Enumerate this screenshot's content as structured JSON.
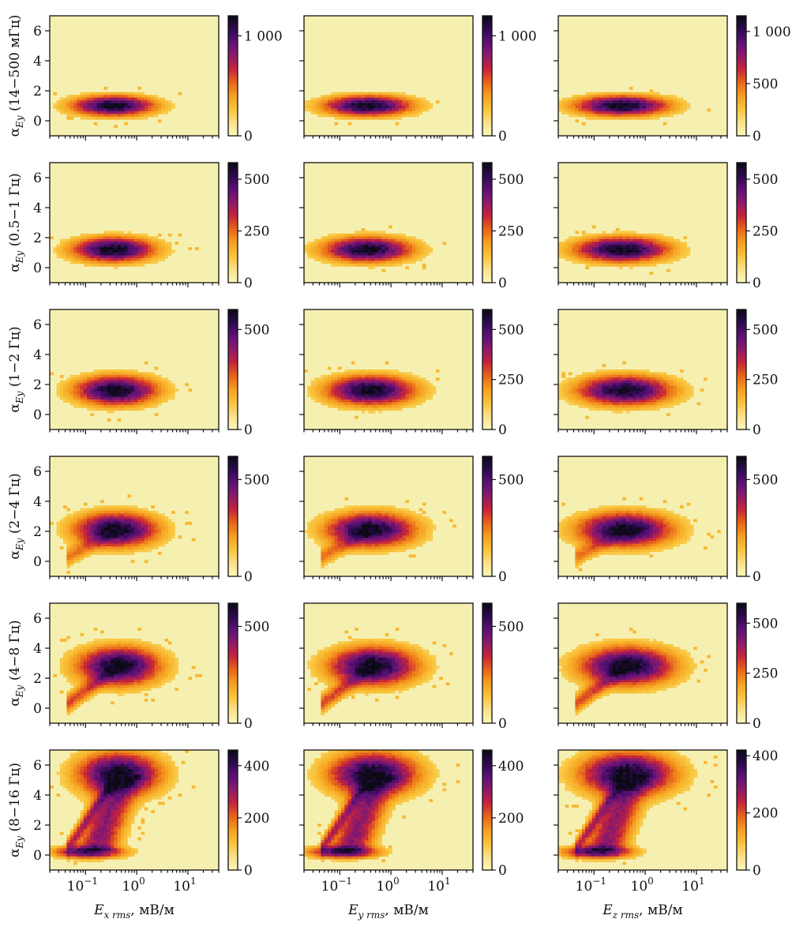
{
  "figure": {
    "colormap": "inferno_r",
    "colormap_stops": [
      "#fbf8b8",
      "#fbe08a",
      "#f9c43a",
      "#f59f20",
      "#e8661a",
      "#c7243a",
      "#8e1a6a",
      "#5d1177",
      "#2d0a4e",
      "#0a0a14"
    ],
    "background_color": "#f6f0b0"
  },
  "chart_data": {
    "type": "heatmap",
    "rows": [
      {
        "band": "(14−500 мГц)",
        "ylabel_var": "α",
        "ylabel_sub": "Ey"
      },
      {
        "band": "(0.5−1 Гц)",
        "ylabel_var": "α",
        "ylabel_sub": "Ey"
      },
      {
        "band": "(1−2 Гц)",
        "ylabel_var": "α",
        "ylabel_sub": "Ey"
      },
      {
        "band": "(2−4 Гц)",
        "ylabel_var": "α",
        "ylabel_sub": "Ey"
      },
      {
        "band": "(4−8 Гц)",
        "ylabel_var": "α",
        "ylabel_sub": "Ey"
      },
      {
        "band": "(8−16 Гц)",
        "ylabel_var": "α",
        "ylabel_sub": "Ey"
      }
    ],
    "columns": [
      {
        "xlabel_var": "E",
        "xlabel_sub": "x rms",
        "xlabel_unit": ", мВ/м"
      },
      {
        "xlabel_var": "E",
        "xlabel_sub": "y rms",
        "xlabel_unit": ", мВ/м"
      },
      {
        "xlabel_var": "E",
        "xlabel_sub": "z rms",
        "xlabel_unit": ", мВ/м"
      }
    ],
    "x_axis": {
      "scale": "log",
      "range": [
        0.02,
        40
      ],
      "ticks": [
        0.1,
        1,
        10
      ],
      "tick_labels": [
        "10",
        "10",
        "10"
      ],
      "tick_exponents": [
        "−1",
        "0",
        "1"
      ]
    },
    "y_axis": {
      "range": [
        -1,
        7
      ],
      "ticks": [
        0,
        2,
        4,
        6
      ],
      "tick_labels": [
        "0",
        "2",
        "4",
        "6"
      ]
    },
    "colorbar_ticks": [
      [
        {
          "max": 1200,
          "ticks": [
            {
              "value": 0,
              "label": "0"
            },
            {
              "value": 1000,
              "label": "1 000"
            }
          ]
        },
        {
          "max": 1200,
          "ticks": [
            {
              "value": 0,
              "label": "0"
            },
            {
              "value": 1000,
              "label": "1 000"
            }
          ]
        },
        {
          "max": 1150,
          "ticks": [
            {
              "value": 0,
              "label": "0"
            },
            {
              "value": 500,
              "label": "500"
            },
            {
              "value": 1000,
              "label": "1 000"
            }
          ]
        }
      ],
      [
        {
          "max": 580,
          "ticks": [
            {
              "value": 0,
              "label": "0"
            },
            {
              "value": 250,
              "label": "250"
            },
            {
              "value": 500,
              "label": "500"
            }
          ]
        },
        {
          "max": 580,
          "ticks": [
            {
              "value": 0,
              "label": "0"
            },
            {
              "value": 250,
              "label": "250"
            },
            {
              "value": 500,
              "label": "500"
            }
          ]
        },
        {
          "max": 580,
          "ticks": [
            {
              "value": 0,
              "label": "0"
            },
            {
              "value": 250,
              "label": "250"
            },
            {
              "value": 500,
              "label": "500"
            }
          ]
        }
      ],
      [
        {
          "max": 600,
          "ticks": [
            {
              "value": 0,
              "label": "0"
            },
            {
              "value": 500,
              "label": "500"
            }
          ]
        },
        {
          "max": 600,
          "ticks": [
            {
              "value": 0,
              "label": "0"
            },
            {
              "value": 250,
              "label": "250"
            },
            {
              "value": 500,
              "label": "500"
            }
          ]
        },
        {
          "max": 600,
          "ticks": [
            {
              "value": 0,
              "label": "0"
            },
            {
              "value": 250,
              "label": "250"
            },
            {
              "value": 500,
              "label": "500"
            }
          ]
        }
      ],
      [
        {
          "max": 620,
          "ticks": [
            {
              "value": 0,
              "label": "0"
            },
            {
              "value": 500,
              "label": "500"
            }
          ]
        },
        {
          "max": 620,
          "ticks": [
            {
              "value": 0,
              "label": "0"
            },
            {
              "value": 500,
              "label": "500"
            }
          ]
        },
        {
          "max": 620,
          "ticks": [
            {
              "value": 0,
              "label": "0"
            },
            {
              "value": 500,
              "label": "500"
            }
          ]
        }
      ],
      [
        {
          "max": 620,
          "ticks": [
            {
              "value": 0,
              "label": "0"
            },
            {
              "value": 500,
              "label": "500"
            }
          ]
        },
        {
          "max": 620,
          "ticks": [
            {
              "value": 0,
              "label": "0"
            },
            {
              "value": 500,
              "label": "500"
            }
          ]
        },
        {
          "max": 600,
          "ticks": [
            {
              "value": 0,
              "label": "0"
            },
            {
              "value": 250,
              "label": "250"
            },
            {
              "value": 500,
              "label": "500"
            }
          ]
        }
      ],
      [
        {
          "max": 460,
          "ticks": [
            {
              "value": 0,
              "label": "0"
            },
            {
              "value": 200,
              "label": "200"
            },
            {
              "value": 400,
              "label": "400"
            }
          ]
        },
        {
          "max": 460,
          "ticks": [
            {
              "value": 0,
              "label": "0"
            },
            {
              "value": 200,
              "label": "200"
            },
            {
              "value": 400,
              "label": "400"
            }
          ]
        },
        {
          "max": 420,
          "ticks": [
            {
              "value": 0,
              "label": "0"
            },
            {
              "value": 200,
              "label": "200"
            },
            {
              "value": 400,
              "label": "400"
            }
          ]
        }
      ]
    ],
    "density_peaks": [
      {
        "row": 0,
        "peak_x": 0.35,
        "peak_y": 1.0
      },
      {
        "row": 1,
        "peak_x": 0.35,
        "peak_y": 1.2
      },
      {
        "row": 2,
        "peak_x": 0.4,
        "peak_y": 1.6
      },
      {
        "row": 3,
        "peak_x": 0.4,
        "peak_y": 2.1
      },
      {
        "row": 4,
        "peak_x": 0.45,
        "peak_y": 2.8
      },
      {
        "row": 5,
        "peak_x": 0.45,
        "peak_y": 5.4,
        "secondary_peak_x": 0.12,
        "secondary_peak_y": 0.2
      }
    ]
  }
}
